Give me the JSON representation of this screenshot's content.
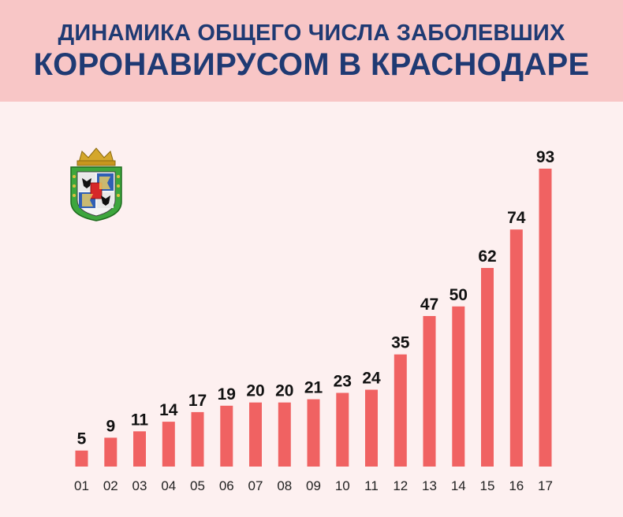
{
  "header": {
    "title_line1": "ДИНАМИКА ОБЩЕГО ЧИСЛА ЗАБОЛЕВШИХ",
    "title_line2": "КОРОНАВИРУСОМ В КРАСНОДАРЕ"
  },
  "emblem": {
    "icon": "krasnodar-coat-of-arms-icon"
  },
  "colors": {
    "header_bg": "#f8c6c6",
    "page_bg": "#fdf0f0",
    "title": "#1f3a73",
    "bar": "#f06262"
  },
  "chart_data": {
    "type": "bar",
    "categories": [
      "01",
      "02",
      "03",
      "04",
      "05",
      "06",
      "07",
      "08",
      "09",
      "10",
      "11",
      "12",
      "13",
      "14",
      "15",
      "16",
      "17"
    ],
    "values": [
      5,
      9,
      11,
      14,
      17,
      19,
      20,
      20,
      21,
      23,
      24,
      35,
      47,
      50,
      62,
      74,
      93
    ],
    "title": "ДИНАМИКА ОБЩЕГО ЧИСЛА ЗАБОЛЕВШИХ КОРОНАВИРУСОМ В КРАСНОДАРЕ",
    "xlabel": "",
    "ylabel": "",
    "ylim": [
      0,
      93
    ],
    "grid": false,
    "data_labels": true
  }
}
